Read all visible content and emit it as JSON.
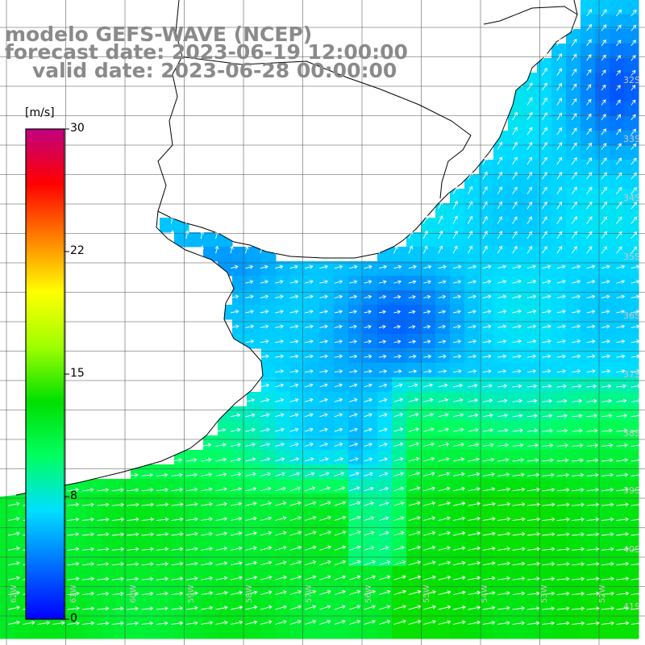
{
  "title": {
    "line1": "modelo GEFS-WAVE (NCEP)",
    "line2": "forecast date: 2023-06-19 12:00:00",
    "line3": "valid date: 2023-06-28 00:00:00"
  },
  "colorbar": {
    "unit": "[m/s]",
    "ticks": [
      "30",
      "22",
      "15",
      "8",
      "0"
    ],
    "min": 0,
    "max": 30,
    "colors": [
      "#0000ff",
      "#0070ff",
      "#00e0ff",
      "#00ff60",
      "#00e000",
      "#a0ff00",
      "#ffff00",
      "#ff8000",
      "#ff0000",
      "#c00080"
    ]
  },
  "map": {
    "land_color": "#ffffff",
    "grid_color": "#000000",
    "coast_color": "#000000",
    "lat_labels": [
      "32S",
      "33S",
      "34S",
      "35S",
      "36S",
      "37S",
      "38S",
      "39S",
      "40S",
      "41S"
    ],
    "lon_labels": [
      "62W",
      "61W",
      "60W",
      "59W",
      "58W",
      "57W",
      "56W",
      "55W",
      "54W",
      "53W",
      "52W"
    ]
  }
}
